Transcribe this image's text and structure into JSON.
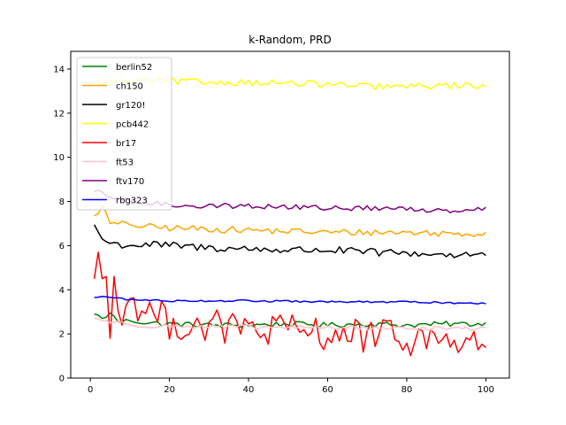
{
  "chart_data": {
    "type": "line",
    "title": "k-Random, PRD",
    "xlabel": "",
    "ylabel": "",
    "xlim": [
      -4.95,
      105.95
    ],
    "ylim": [
      0,
      14.8
    ],
    "xticks": [
      0,
      20,
      40,
      60,
      80,
      100
    ],
    "yticks": [
      0,
      2,
      4,
      6,
      8,
      10,
      12,
      14
    ],
    "grid": false,
    "legend": "top-left",
    "series": [
      {
        "name": "berlin52",
        "color": "#008000",
        "anchors": [
          [
            1,
            2.9
          ],
          [
            3,
            2.7
          ],
          [
            5,
            2.95
          ],
          [
            7,
            2.55
          ],
          [
            10,
            2.6
          ],
          [
            15,
            2.5
          ],
          [
            20,
            2.45
          ],
          [
            30,
            2.4
          ],
          [
            40,
            2.4
          ],
          [
            50,
            2.45
          ],
          [
            60,
            2.4
          ],
          [
            70,
            2.45
          ],
          [
            80,
            2.4
          ],
          [
            90,
            2.45
          ],
          [
            100,
            2.45
          ]
        ],
        "amp": 0.12
      },
      {
        "name": "ch150",
        "color": "#FFA500",
        "anchors": [
          [
            1,
            7.35
          ],
          [
            3,
            7.8
          ],
          [
            5,
            7.0
          ],
          [
            10,
            6.95
          ],
          [
            15,
            6.85
          ],
          [
            20,
            6.8
          ],
          [
            30,
            6.75
          ],
          [
            40,
            6.7
          ],
          [
            50,
            6.65
          ],
          [
            60,
            6.6
          ],
          [
            70,
            6.6
          ],
          [
            80,
            6.6
          ],
          [
            90,
            6.55
          ],
          [
            100,
            6.55
          ]
        ],
        "amp": 0.15
      },
      {
        "name": "gr120!",
        "color": "#000000",
        "anchors": [
          [
            1,
            6.95
          ],
          [
            3,
            6.3
          ],
          [
            5,
            6.1
          ],
          [
            10,
            6.0
          ],
          [
            15,
            6.05
          ],
          [
            20,
            6.0
          ],
          [
            30,
            5.9
          ],
          [
            40,
            5.85
          ],
          [
            50,
            5.8
          ],
          [
            60,
            5.8
          ],
          [
            70,
            5.7
          ],
          [
            80,
            5.65
          ],
          [
            90,
            5.6
          ],
          [
            100,
            5.6
          ]
        ],
        "amp": 0.18
      },
      {
        "name": "pcb442",
        "color": "#FFFF00",
        "anchors": [
          [
            1,
            13.4
          ],
          [
            10,
            13.45
          ],
          [
            20,
            13.45
          ],
          [
            30,
            13.4
          ],
          [
            40,
            13.4
          ],
          [
            50,
            13.35
          ],
          [
            60,
            13.3
          ],
          [
            70,
            13.2
          ],
          [
            80,
            13.2
          ],
          [
            90,
            13.25
          ],
          [
            100,
            13.25
          ]
        ],
        "amp": 0.15
      },
      {
        "name": "br17",
        "color": "#FF0000",
        "anchors": [
          [
            1,
            4.5
          ],
          [
            2,
            5.7
          ],
          [
            3,
            4.5
          ],
          [
            4,
            4.6
          ],
          [
            5,
            1.8
          ],
          [
            6,
            4.6
          ],
          [
            8,
            2.4
          ],
          [
            10,
            3.6
          ],
          [
            20,
            2.5
          ],
          [
            40,
            2.2
          ],
          [
            60,
            2.0
          ],
          [
            80,
            1.8
          ],
          [
            100,
            1.6
          ]
        ],
        "amp": 0.8
      },
      {
        "name": "ft53",
        "color": "#FFC0CB",
        "anchors": [
          [
            1,
            2.7
          ],
          [
            10,
            2.4
          ],
          [
            20,
            2.35
          ],
          [
            40,
            2.3
          ],
          [
            60,
            2.3
          ],
          [
            80,
            2.25
          ],
          [
            100,
            2.25
          ]
        ],
        "amp": 0.1
      },
      {
        "name": "ftv170",
        "color": "#800080",
        "anchors": [
          [
            1,
            8.45
          ],
          [
            5,
            8.2
          ],
          [
            10,
            8.0
          ],
          [
            20,
            7.85
          ],
          [
            30,
            7.8
          ],
          [
            40,
            7.8
          ],
          [
            50,
            7.75
          ],
          [
            60,
            7.7
          ],
          [
            70,
            7.7
          ],
          [
            80,
            7.65
          ],
          [
            90,
            7.6
          ],
          [
            100,
            7.7
          ]
        ],
        "amp": 0.12
      },
      {
        "name": "rbg323",
        "color": "#0000FF",
        "anchors": [
          [
            1,
            3.65
          ],
          [
            3,
            3.7
          ],
          [
            10,
            3.55
          ],
          [
            20,
            3.5
          ],
          [
            40,
            3.5
          ],
          [
            60,
            3.45
          ],
          [
            80,
            3.45
          ],
          [
            100,
            3.38
          ]
        ],
        "amp": 0.04
      }
    ]
  }
}
